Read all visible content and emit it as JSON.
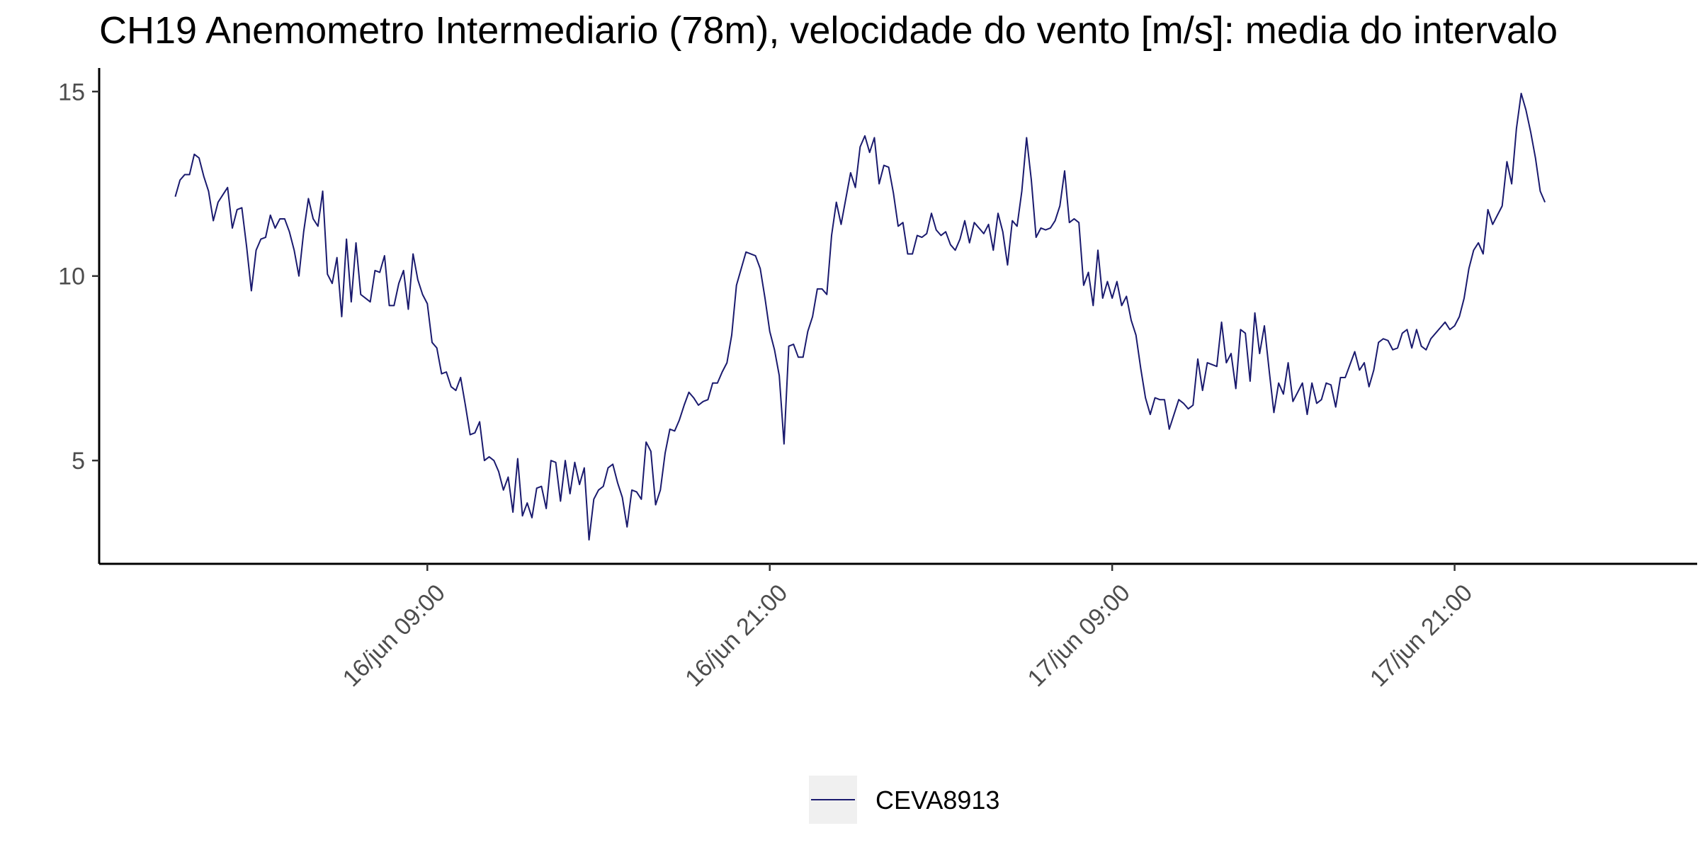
{
  "colors": {
    "series_line": "#1a1a6e",
    "axis": "#000000",
    "tick_text": "#4d4d4d",
    "legend_key_background": "#f0f0f0"
  },
  "chart_data": {
    "type": "line",
    "title": "CH19 Anemometro Intermediario (78m), velocidade do vento [m/s]: media do intervalo",
    "xlabel": "",
    "ylabel": "",
    "grid": false,
    "legend_position": "bottom",
    "x_start": "2023-06-16T00:10",
    "x_step_minutes": 10,
    "x_ticks": [
      "2023-06-16T09:00",
      "2023-06-16T21:00",
      "2023-06-17T09:00",
      "2023-06-17T21:00"
    ],
    "x_tick_labels": [
      "16/jun 09:00",
      "16/jun 21:00",
      "17/jun 09:00",
      "17/jun 21:00"
    ],
    "y_ticks": [
      5,
      10,
      15
    ],
    "xlim": [
      "2023-06-15T21:30",
      "2023-06-18T05:30"
    ],
    "ylim": [
      2.2,
      15.6
    ],
    "series": [
      {
        "name": "CEVA8913",
        "values": [
          12.15,
          12.6,
          12.75,
          12.75,
          13.3,
          13.2,
          12.7,
          12.3,
          11.5,
          12.0,
          12.2,
          12.4,
          11.3,
          11.8,
          11.85,
          10.8,
          9.6,
          10.7,
          11.0,
          11.05,
          11.65,
          11.3,
          11.55,
          11.55,
          11.2,
          10.7,
          10.0,
          11.2,
          12.1,
          11.55,
          11.35,
          12.3,
          10.05,
          9.8,
          10.5,
          8.9,
          11.0,
          9.3,
          10.9,
          9.5,
          9.4,
          9.3,
          10.15,
          10.1,
          10.55,
          9.2,
          9.2,
          9.8,
          10.15,
          9.1,
          10.6,
          9.9,
          9.5,
          9.25,
          8.2,
          8.05,
          7.35,
          7.4,
          7.0,
          6.9,
          7.25,
          6.5,
          5.7,
          5.75,
          6.05,
          5.0,
          5.1,
          5.0,
          4.7,
          4.2,
          4.55,
          3.6,
          5.05,
          3.5,
          3.85,
          3.45,
          4.25,
          4.3,
          3.7,
          5.0,
          4.95,
          3.9,
          5.0,
          4.1,
          4.95,
          4.35,
          4.8,
          2.85,
          3.95,
          4.2,
          4.3,
          4.8,
          4.9,
          4.4,
          4.0,
          3.2,
          4.2,
          4.15,
          3.95,
          5.5,
          5.25,
          3.8,
          4.2,
          5.2,
          5.85,
          5.8,
          6.1,
          6.5,
          6.85,
          6.7,
          6.5,
          6.6,
          6.65,
          7.1,
          7.1,
          7.4,
          7.65,
          8.4,
          9.75,
          10.2,
          10.65,
          10.6,
          10.55,
          10.2,
          9.4,
          8.5,
          8.0,
          7.3,
          5.45,
          8.1,
          8.15,
          7.8,
          7.8,
          8.5,
          8.9,
          9.65,
          9.65,
          9.5,
          11.1,
          12.0,
          11.4,
          12.1,
          12.8,
          12.4,
          13.5,
          13.8,
          13.35,
          13.75,
          12.5,
          13.0,
          12.95,
          12.25,
          11.35,
          11.45,
          10.6,
          10.6,
          11.1,
          11.05,
          11.15,
          11.7,
          11.25,
          11.1,
          11.2,
          10.85,
          10.7,
          11.0,
          11.5,
          10.9,
          11.45,
          11.3,
          11.15,
          11.4,
          10.7,
          11.7,
          11.2,
          10.3,
          11.5,
          11.35,
          12.3,
          13.75,
          12.6,
          11.05,
          11.3,
          11.25,
          11.3,
          11.5,
          11.9,
          12.85,
          11.45,
          11.55,
          11.45,
          9.75,
          10.1,
          9.2,
          10.7,
          9.4,
          9.85,
          9.4,
          9.85,
          9.2,
          9.45,
          8.8,
          8.4,
          7.5,
          6.7,
          6.25,
          6.7,
          6.65,
          6.65,
          5.85,
          6.25,
          6.65,
          6.55,
          6.4,
          6.5,
          7.75,
          6.9,
          7.65,
          7.6,
          7.55,
          8.75,
          7.65,
          7.9,
          6.95,
          8.55,
          8.45,
          7.15,
          9.0,
          7.9,
          8.65,
          7.45,
          6.3,
          7.1,
          6.8,
          7.65,
          6.6,
          6.85,
          7.1,
          6.25,
          7.1,
          6.55,
          6.65,
          7.1,
          7.05,
          6.45,
          7.25,
          7.25,
          7.6,
          7.95,
          7.45,
          7.65,
          7.0,
          7.45,
          8.2,
          8.3,
          8.25,
          8.0,
          8.05,
          8.45,
          8.55,
          8.05,
          8.55,
          8.1,
          8.0,
          8.3,
          8.45,
          8.6,
          8.75,
          8.55,
          8.65,
          8.9,
          9.4,
          10.2,
          10.7,
          10.9,
          10.6,
          11.8,
          11.4,
          11.65,
          11.9,
          13.1,
          12.5,
          14.0,
          14.95,
          14.5,
          13.9,
          13.2,
          12.3,
          12.0
        ]
      }
    ]
  }
}
